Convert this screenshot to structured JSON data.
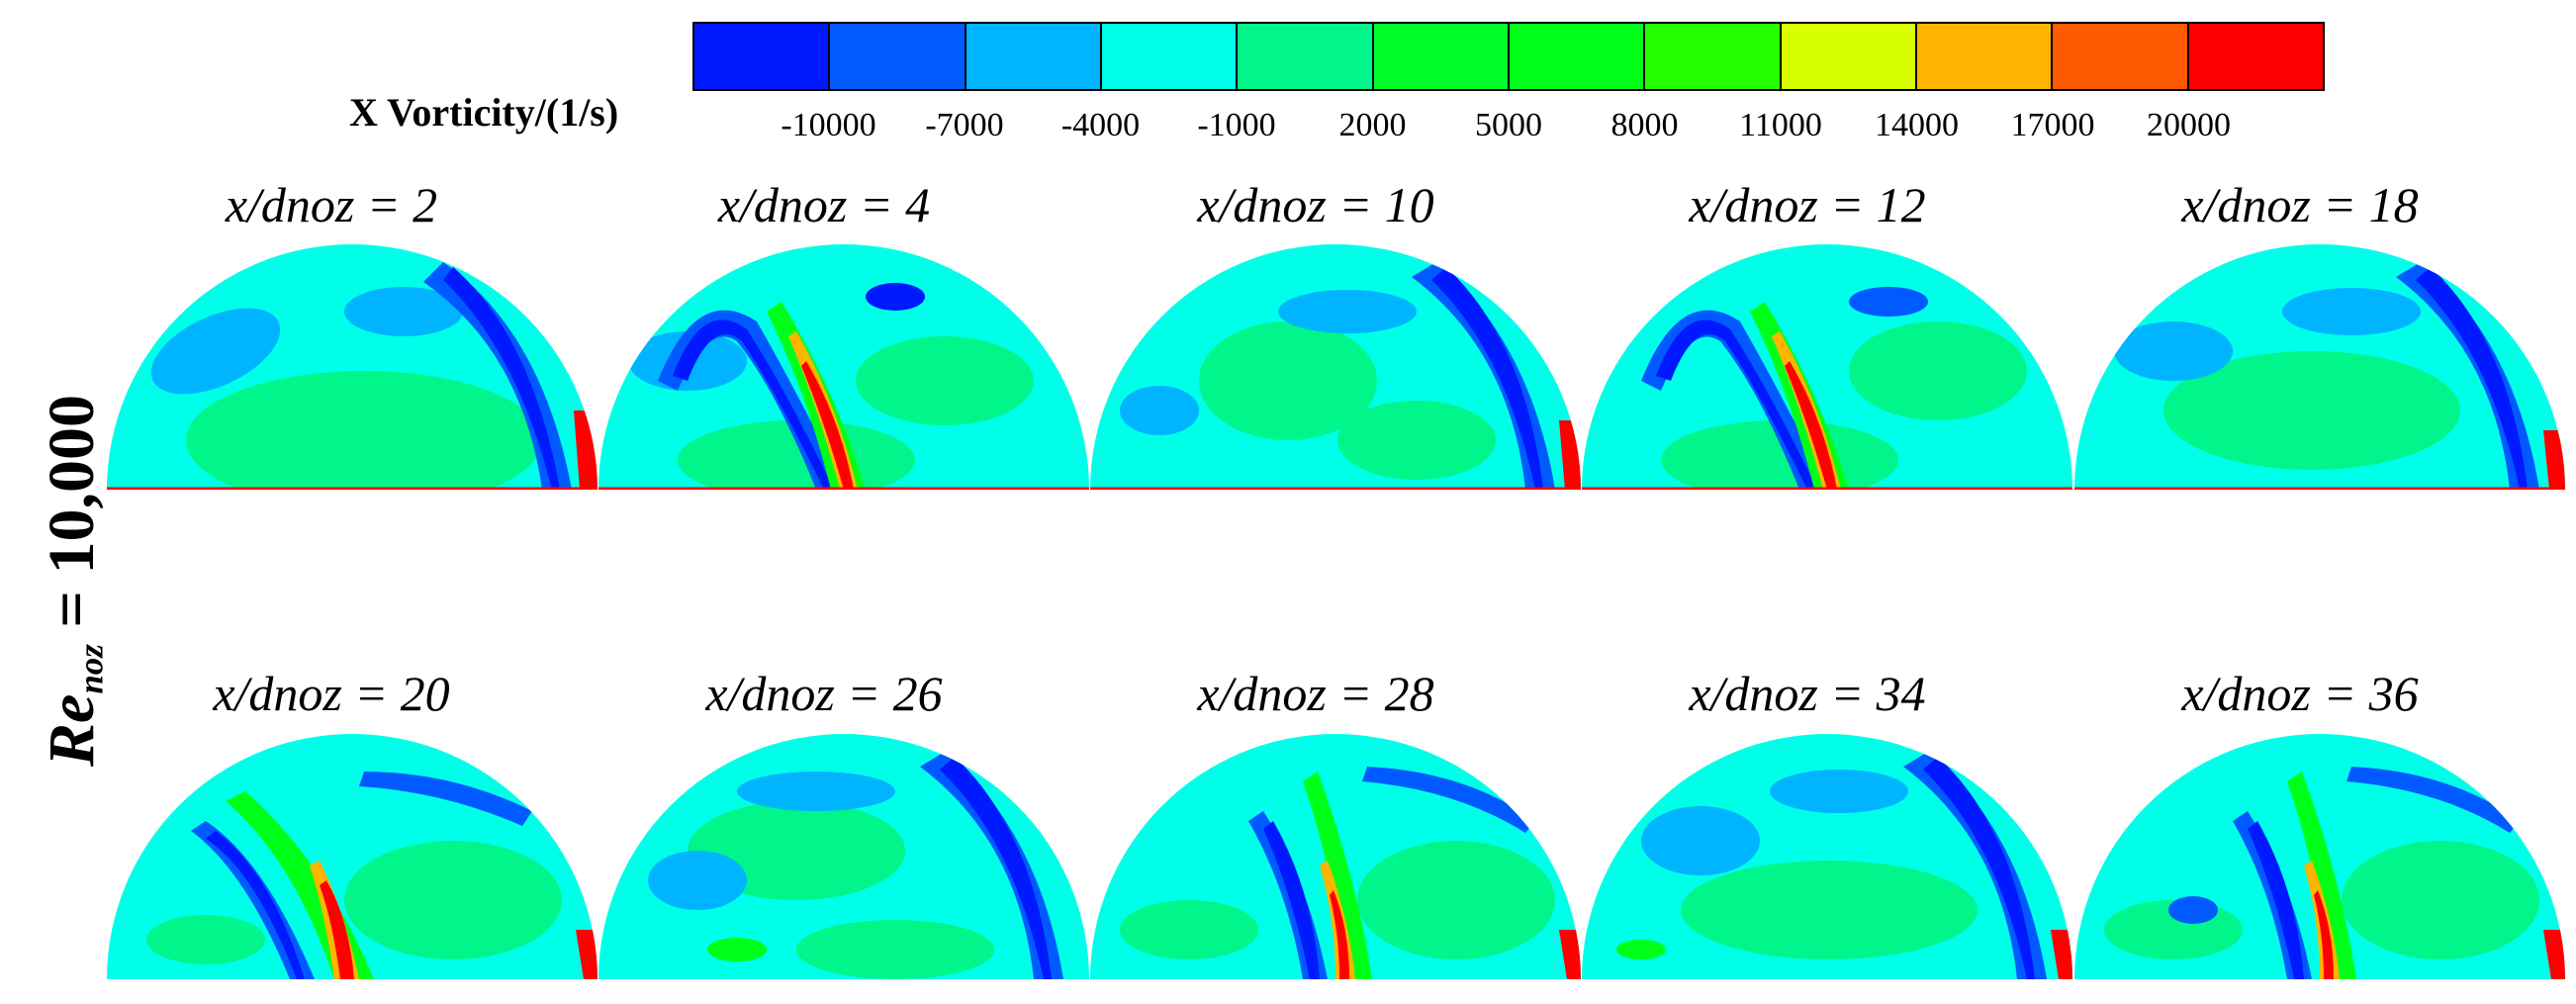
{
  "colorbar": {
    "title": "X Vorticity/(1/s)",
    "ticks": [
      "-10000",
      "-7000",
      "-4000",
      "-1000",
      "2000",
      "5000",
      "8000",
      "11000",
      "14000",
      "17000",
      "20000"
    ],
    "colors": [
      "#0019ff",
      "#005aff",
      "#00b4ff",
      "#00ffe8",
      "#00f58a",
      "#00ff2a",
      "#00ff18",
      "#24ff00",
      "#d8ff00",
      "#ffb400",
      "#ff5a00",
      "#ff0000"
    ]
  },
  "side_label": {
    "main": "Re",
    "sub": "noz",
    "rest": " = 10,000"
  },
  "panels": {
    "row1": [
      {
        "label": "x/dnoz = 2"
      },
      {
        "label": "x/dnoz = 4"
      },
      {
        "label": "x/dnoz = 10"
      },
      {
        "label": "x/dnoz = 12"
      },
      {
        "label": "x/dnoz = 18"
      }
    ],
    "row2": [
      {
        "label": "x/dnoz = 20"
      },
      {
        "label": "x/dnoz = 26"
      },
      {
        "label": "x/dnoz = 28"
      },
      {
        "label": "x/dnoz = 34"
      },
      {
        "label": "x/dnoz = 36"
      }
    ]
  }
}
